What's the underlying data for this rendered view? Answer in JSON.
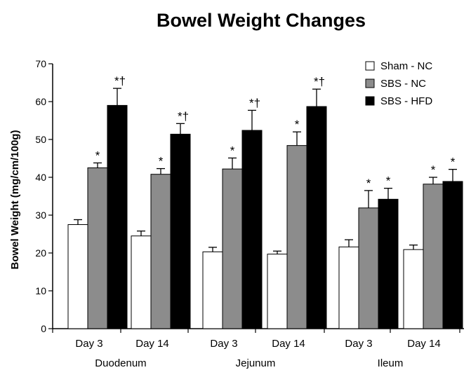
{
  "chart_data": {
    "type": "bar",
    "title": "Bowel Weight Changes",
    "ylabel": "Bowel Weight (mg/cm/100g)",
    "xlabel": "",
    "ylim": [
      0,
      70
    ],
    "yticks": [
      0,
      10,
      20,
      30,
      40,
      50,
      60,
      70
    ],
    "grid": false,
    "legend_position": "top-right",
    "groups": [
      "Duodenum",
      "Jejunum",
      "Ileum"
    ],
    "categories": [
      "Day 3",
      "Day 14",
      "Day 3",
      "Day 14",
      "Day 3",
      "Day 14"
    ],
    "category_group": [
      0,
      0,
      1,
      1,
      2,
      2
    ],
    "series": [
      {
        "name": "Sham - NC",
        "color": "#ffffff",
        "values": [
          27.5,
          24.5,
          20.3,
          19.7,
          21.6,
          20.9
        ],
        "errors": [
          1.3,
          1.3,
          1.2,
          0.8,
          1.9,
          1.2
        ],
        "annotations": [
          "",
          "",
          "",
          "",
          "",
          ""
        ]
      },
      {
        "name": "SBS - NC",
        "color": "#8c8c8c",
        "values": [
          42.5,
          40.8,
          42.2,
          48.4,
          31.9,
          38.2
        ],
        "errors": [
          1.3,
          1.5,
          2.9,
          3.6,
          4.6,
          1.8
        ],
        "annotations": [
          "*",
          "*",
          "*",
          "*",
          "*",
          "*"
        ]
      },
      {
        "name": "SBS - HFD",
        "color": "#000000",
        "values": [
          59.0,
          51.4,
          52.4,
          58.7,
          34.2,
          38.9
        ],
        "errors": [
          4.5,
          2.8,
          5.3,
          4.6,
          2.9,
          3.2
        ],
        "annotations": [
          "*†",
          "*†",
          "*†",
          "*†",
          "*",
          "*"
        ]
      }
    ]
  }
}
